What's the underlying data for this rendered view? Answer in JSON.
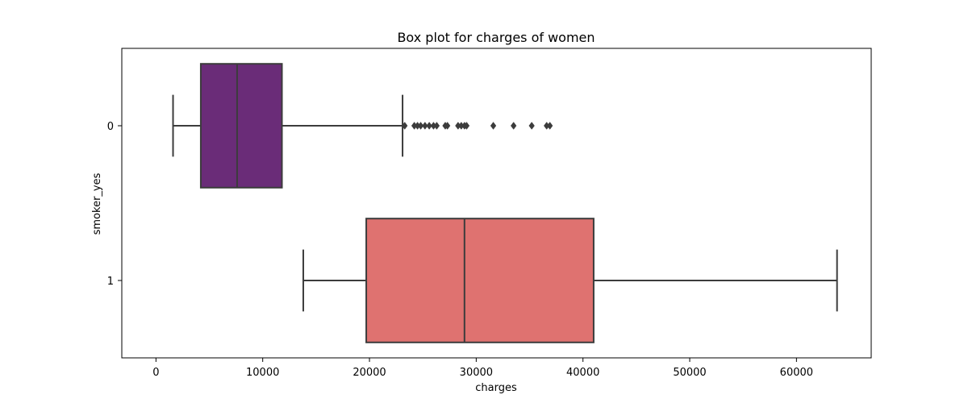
{
  "chart_data": {
    "type": "box",
    "orientation": "horizontal",
    "title": "Box plot for charges of women",
    "xlabel": "charges",
    "ylabel": "smoker_yes",
    "xlim": [
      -3200,
      67000
    ],
    "xticks": [
      0,
      10000,
      20000,
      30000,
      40000,
      50000,
      60000
    ],
    "xtick_labels": [
      "0",
      "10000",
      "20000",
      "30000",
      "40000",
      "50000",
      "60000"
    ],
    "categories": [
      "0",
      "1"
    ],
    "grid": false,
    "legend": "none",
    "boxes": [
      {
        "category": "0",
        "color": "#6a2c78",
        "whislo": 1600,
        "q1": 4200,
        "median": 7600,
        "q3": 11800,
        "whishi": 23100,
        "fliers": [
          23300,
          24200,
          24500,
          24800,
          25200,
          25600,
          26000,
          26300,
          27100,
          27300,
          28300,
          28600,
          28900,
          29100,
          31600,
          33500,
          35200,
          36600,
          36900
        ]
      },
      {
        "category": "1",
        "color": "#df7270",
        "whislo": 13800,
        "q1": 19700,
        "median": 28900,
        "q3": 41000,
        "whishi": 63800,
        "fliers": []
      }
    ]
  }
}
